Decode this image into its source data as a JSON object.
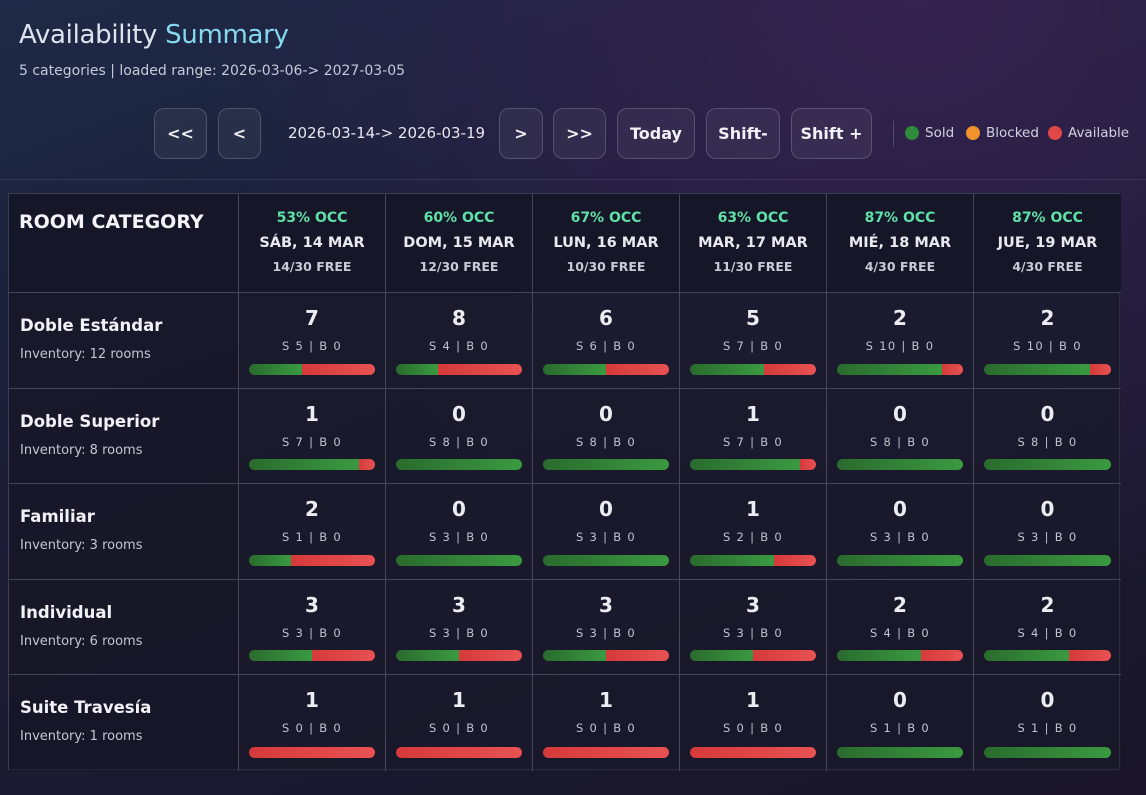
{
  "header": {
    "title_part1": "Availability",
    "title_part2": "Summary",
    "subtitle": "5 categories | loaded range: 2026-03-06-> 2027-03-05"
  },
  "nav": {
    "first_label": "<<",
    "prev_label": "<",
    "range_label": "2026-03-14-> 2026-03-19",
    "next_label": ">",
    "last_label": ">>",
    "today_label": "Today",
    "shift_minus_label": "Shift-",
    "shift_plus_label": "Shift +"
  },
  "legend": [
    {
      "label": "Sold",
      "color": "#2f8a3a"
    },
    {
      "label": "Blocked",
      "color": "#f0932c"
    },
    {
      "label": "Available",
      "color": "#e04848"
    }
  ],
  "table": {
    "category_header": "ROOM CATEGORY",
    "days": [
      {
        "occ": "53% OCC",
        "date": "SÁB, 14 MAR",
        "free": "14/30 FREE"
      },
      {
        "occ": "60% OCC",
        "date": "DOM, 15 MAR",
        "free": "12/30 FREE"
      },
      {
        "occ": "67% OCC",
        "date": "LUN, 16 MAR",
        "free": "10/30 FREE"
      },
      {
        "occ": "63% OCC",
        "date": "MAR, 17 MAR",
        "free": "11/30 FREE"
      },
      {
        "occ": "87% OCC",
        "date": "MIÉ, 18 MAR",
        "free": "4/30 FREE"
      },
      {
        "occ": "87% OCC",
        "date": "JUE, 19 MAR",
        "free": "4/30 FREE"
      }
    ],
    "rows": [
      {
        "name": "Doble Estándar",
        "inventory": "Inventory: 12 rooms",
        "cells": [
          {
            "available": "7",
            "detail": "S 5 | B 0",
            "sold": 5,
            "blocked": 0,
            "total": 12
          },
          {
            "available": "8",
            "detail": "S 4 | B 0",
            "sold": 4,
            "blocked": 0,
            "total": 12
          },
          {
            "available": "6",
            "detail": "S 6 | B 0",
            "sold": 6,
            "blocked": 0,
            "total": 12
          },
          {
            "available": "5",
            "detail": "S 7 | B 0",
            "sold": 7,
            "blocked": 0,
            "total": 12
          },
          {
            "available": "2",
            "detail": "S 10 | B 0",
            "sold": 10,
            "blocked": 0,
            "total": 12
          },
          {
            "available": "2",
            "detail": "S 10 | B 0",
            "sold": 10,
            "blocked": 0,
            "total": 12
          }
        ]
      },
      {
        "name": "Doble Superior",
        "inventory": "Inventory: 8 rooms",
        "cells": [
          {
            "available": "1",
            "detail": "S 7 | B 0",
            "sold": 7,
            "blocked": 0,
            "total": 8
          },
          {
            "available": "0",
            "detail": "S 8 | B 0",
            "sold": 8,
            "blocked": 0,
            "total": 8
          },
          {
            "available": "0",
            "detail": "S 8 | B 0",
            "sold": 8,
            "blocked": 0,
            "total": 8
          },
          {
            "available": "1",
            "detail": "S 7 | B 0",
            "sold": 7,
            "blocked": 0,
            "total": 8
          },
          {
            "available": "0",
            "detail": "S 8 | B 0",
            "sold": 8,
            "blocked": 0,
            "total": 8
          },
          {
            "available": "0",
            "detail": "S 8 | B 0",
            "sold": 8,
            "blocked": 0,
            "total": 8
          }
        ]
      },
      {
        "name": "Familiar",
        "inventory": "Inventory: 3 rooms",
        "cells": [
          {
            "available": "2",
            "detail": "S 1 | B 0",
            "sold": 1,
            "blocked": 0,
            "total": 3
          },
          {
            "available": "0",
            "detail": "S 3 | B 0",
            "sold": 3,
            "blocked": 0,
            "total": 3
          },
          {
            "available": "0",
            "detail": "S 3 | B 0",
            "sold": 3,
            "blocked": 0,
            "total": 3
          },
          {
            "available": "1",
            "detail": "S 2 | B 0",
            "sold": 2,
            "blocked": 0,
            "total": 3
          },
          {
            "available": "0",
            "detail": "S 3 | B 0",
            "sold": 3,
            "blocked": 0,
            "total": 3
          },
          {
            "available": "0",
            "detail": "S 3 | B 0",
            "sold": 3,
            "blocked": 0,
            "total": 3
          }
        ]
      },
      {
        "name": "Individual",
        "inventory": "Inventory: 6 rooms",
        "cells": [
          {
            "available": "3",
            "detail": "S 3 | B 0",
            "sold": 3,
            "blocked": 0,
            "total": 6
          },
          {
            "available": "3",
            "detail": "S 3 | B 0",
            "sold": 3,
            "blocked": 0,
            "total": 6
          },
          {
            "available": "3",
            "detail": "S 3 | B 0",
            "sold": 3,
            "blocked": 0,
            "total": 6
          },
          {
            "available": "3",
            "detail": "S 3 | B 0",
            "sold": 3,
            "blocked": 0,
            "total": 6
          },
          {
            "available": "2",
            "detail": "S 4 | B 0",
            "sold": 4,
            "blocked": 0,
            "total": 6
          },
          {
            "available": "2",
            "detail": "S 4 | B 0",
            "sold": 4,
            "blocked": 0,
            "total": 6
          }
        ]
      },
      {
        "name": "Suite Travesía",
        "inventory": "Inventory: 1 rooms",
        "cells": [
          {
            "available": "1",
            "detail": "S 0 | B 0",
            "sold": 0,
            "blocked": 0,
            "total": 1
          },
          {
            "available": "1",
            "detail": "S 0 | B 0",
            "sold": 0,
            "blocked": 0,
            "total": 1
          },
          {
            "available": "1",
            "detail": "S 0 | B 0",
            "sold": 0,
            "blocked": 0,
            "total": 1
          },
          {
            "available": "1",
            "detail": "S 0 | B 0",
            "sold": 0,
            "blocked": 0,
            "total": 1
          },
          {
            "available": "0",
            "detail": "S 1 | B 0",
            "sold": 1,
            "blocked": 0,
            "total": 1
          },
          {
            "available": "0",
            "detail": "S 1 | B 0",
            "sold": 1,
            "blocked": 0,
            "total": 1
          }
        ]
      }
    ]
  }
}
